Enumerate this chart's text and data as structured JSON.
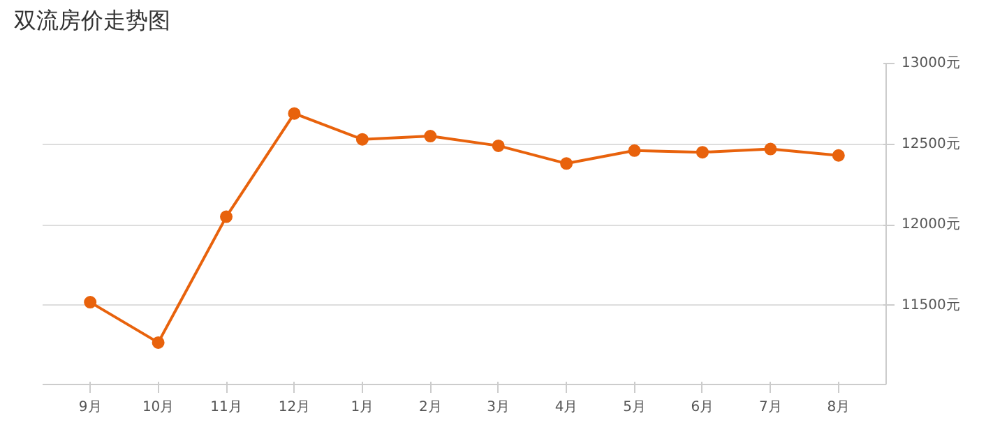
{
  "chart_data": {
    "type": "line",
    "title": "双流房价走势图",
    "categories": [
      "9月",
      "10月",
      "11月",
      "12月",
      "1月",
      "2月",
      "3月",
      "4月",
      "5月",
      "6月",
      "7月",
      "8月"
    ],
    "series": [
      {
        "color": "#e8620c",
        "values": [
          11520,
          11270,
          12050,
          12690,
          12530,
          12550,
          12490,
          12380,
          12460,
          12450,
          12470,
          12430
        ]
      }
    ],
    "ylim": [
      11010,
      13000
    ],
    "yticks": [
      {
        "value": 11500,
        "label": "11500元"
      },
      {
        "value": 12000,
        "label": "12000元"
      },
      {
        "value": 12500,
        "label": "12500元"
      },
      {
        "value": 13000,
        "label": "13000元"
      }
    ],
    "grid": "y",
    "marker": "circle",
    "line_style": "solid"
  }
}
